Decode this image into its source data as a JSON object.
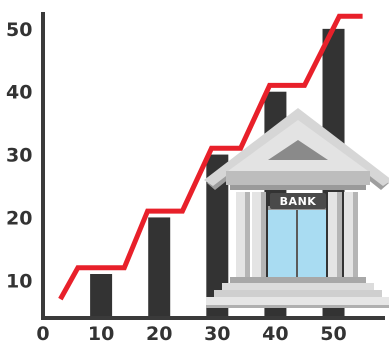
{
  "chart_data": {
    "type": "bar",
    "x": [
      10,
      20,
      30,
      40,
      50
    ],
    "values": [
      11,
      20,
      30,
      40,
      50
    ],
    "line_series": {
      "x": [
        3,
        6,
        14,
        18,
        24,
        29,
        34,
        39,
        45,
        51,
        55
      ],
      "values": [
        7,
        12,
        12,
        21,
        21,
        31,
        31,
        41,
        41,
        52,
        52
      ]
    },
    "x_ticks": [
      "0",
      "10",
      "20",
      "30",
      "40",
      "50"
    ],
    "y_ticks": [
      "10",
      "20",
      "30",
      "40",
      "50"
    ],
    "xlim": [
      0,
      58
    ],
    "ylim": [
      4,
      53
    ],
    "title": "",
    "xlabel": "",
    "ylabel": "",
    "colors": {
      "bars": "#333333",
      "line": "#e8202a",
      "axis": "#3a3a3a",
      "bank_roof": "#c9c9c9",
      "bank_glass": "#a9dcf2",
      "bank_sign_bg": "#4a4a4a"
    }
  },
  "illustration": {
    "icon": "bank-building-icon",
    "sign": "BANK"
  }
}
